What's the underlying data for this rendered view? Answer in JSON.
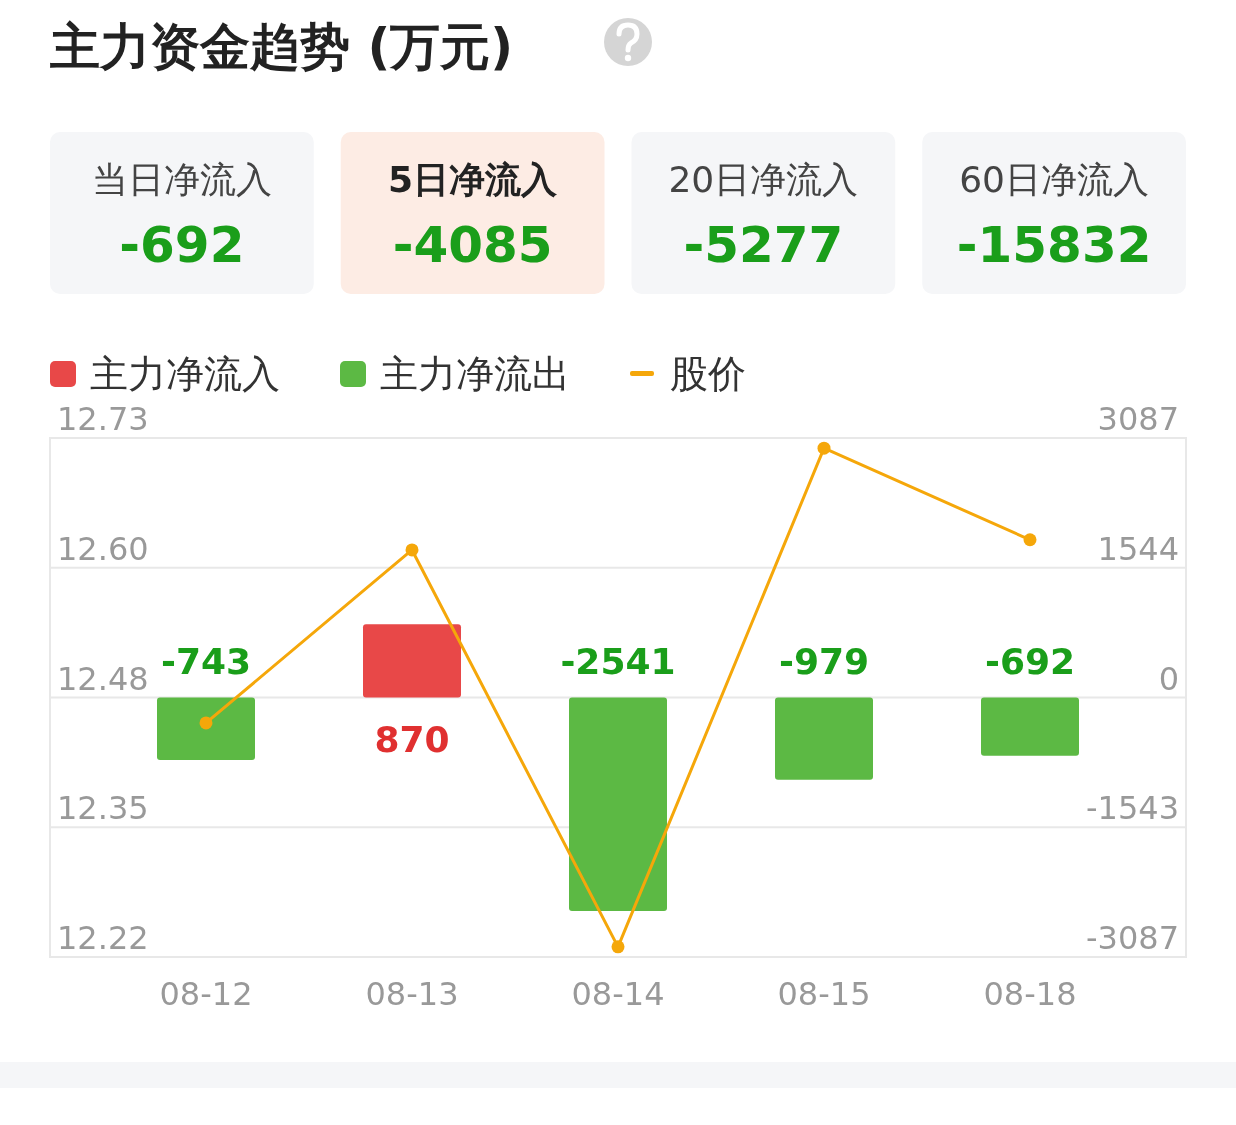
{
  "chart_data": [
    {
      "type": "other",
      "title": "主力资金趋势 (万元)",
      "categories": [
        "当日净流入",
        "5日净流入",
        "20日净流入",
        "60日净流入"
      ],
      "values": [
        -692,
        -4085,
        -5277,
        -15832
      ],
      "data_labels": true
    },
    {
      "type": "bar",
      "categories": [
        "08-12",
        "08-13",
        "08-14",
        "08-15",
        "08-18"
      ],
      "legend": "top left",
      "grid": "y",
      "marker": "circle",
      "series": [
        {
          "name": "主力净流入",
          "color": "#e84848",
          "axis": "y2",
          "values": [
            null,
            870,
            null,
            null,
            null
          ],
          "value_labels": [
            null,
            "870",
            null,
            null,
            null
          ]
        },
        {
          "name": "主力净流出",
          "color": "#5cb944",
          "axis": "y2",
          "values": [
            -743,
            null,
            -2541,
            -979,
            -692
          ],
          "value_labels": [
            "-743",
            null,
            "-2541",
            "-979",
            "-692"
          ]
        },
        {
          "name": "股价",
          "type": "line",
          "color": "#f5a70a",
          "axis": "y",
          "values": [
            12.45,
            12.62,
            12.23,
            12.72,
            12.63
          ]
        }
      ],
      "ylim": [
        12.22,
        12.73
      ],
      "yticks": [
        {
          "value": 12.22,
          "label": "12.22"
        },
        {
          "value": 12.3475,
          "label": "12.35"
        },
        {
          "value": 12.475,
          "label": "12.48"
        },
        {
          "value": 12.6025,
          "label": "12.60"
        },
        {
          "value": 12.73,
          "label": "12.73"
        }
      ],
      "y2lim": [
        -3087,
        3087
      ],
      "y2ticks": [
        -3087,
        {
          "value": -1543.5,
          "label": "-1543"
        },
        0,
        {
          "value": 1543.5,
          "label": "1544"
        },
        3087
      ]
    }
  ]
}
